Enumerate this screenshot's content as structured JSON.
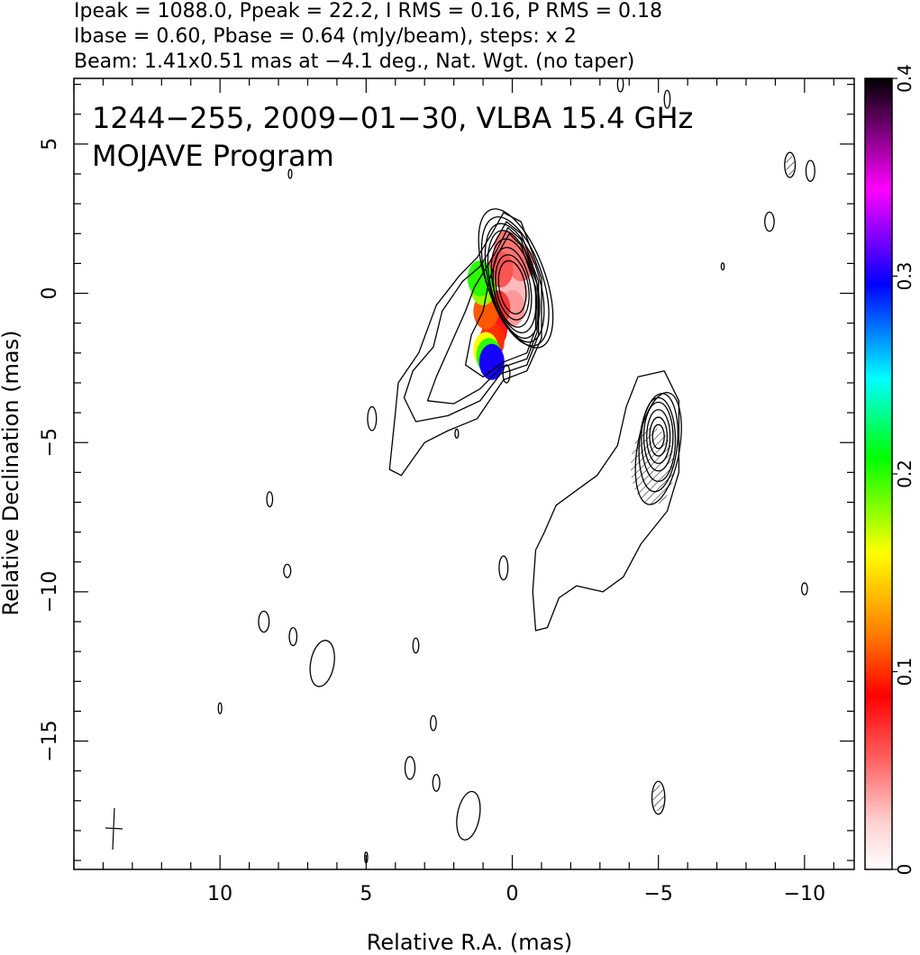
{
  "chart_data": {
    "type": "contour",
    "header": [
      "Ipeak = 1088.0, Ppeak = 22.2, I RMS = 0.16, P RMS = 0.18",
      "Ibase = 0.60, Pbase = 0.64 (mJy/beam), steps: x 2",
      "Beam: 1.41x0.51 mas at −4.1 deg., Nat. Wgt. (no taper)"
    ],
    "annotation": [
      "1244−255, 2009−01−30, VLBA 15.4 GHz",
      "MOJAVE Program"
    ],
    "xlabel": "Relative R.A. (mas)",
    "ylabel": "Relative Declination (mas)",
    "xlim": [
      15.0,
      -11.7
    ],
    "ylim": [
      -19.3,
      7.2
    ],
    "xticks": [
      10,
      5,
      0,
      -5,
      -10
    ],
    "yticks": [
      5,
      0,
      -5,
      -10,
      -15
    ],
    "colorbar": {
      "range": [
        0,
        0.4
      ],
      "ticks": [
        0,
        0.1,
        0.2,
        0.3,
        0.4
      ],
      "colors": [
        "#ffffff",
        "#ffd0d0",
        "#ff6060",
        "#ff0000",
        "#ff8000",
        "#ffff00",
        "#00ff00",
        "#00ffff",
        "#0000ff",
        "#ff00ff",
        "#000000"
      ]
    },
    "core": {
      "x": 0.0,
      "y": 0.0
    },
    "secondary_component": {
      "x": -5.0,
      "y": -4.8
    },
    "beam": {
      "major": 1.41,
      "minor": 0.51,
      "pa": -4.1
    },
    "contours": [
      {
        "cx": 0.0,
        "cy": 0.2,
        "rx": 0.45,
        "ry": 0.9,
        "rot": -10
      },
      {
        "cx": 0.0,
        "cy": 0.2,
        "rx": 0.55,
        "ry": 1.1,
        "rot": -10
      },
      {
        "cx": 0.0,
        "cy": 0.2,
        "rx": 0.62,
        "ry": 1.35,
        "rot": -10
      },
      {
        "cx": -0.05,
        "cy": 0.25,
        "rx": 0.7,
        "ry": 1.6,
        "rot": -12
      },
      {
        "cx": -0.05,
        "cy": 0.3,
        "rx": 0.78,
        "ry": 1.85,
        "rot": -14
      },
      {
        "cx": -0.08,
        "cy": 0.35,
        "rx": 0.86,
        "ry": 2.05,
        "rot": -16
      },
      {
        "cx": -0.1,
        "cy": 0.4,
        "rx": 0.95,
        "ry": 2.25,
        "rot": -18
      },
      {
        "cx": -0.12,
        "cy": 0.5,
        "rx": 1.0,
        "ry": 2.45,
        "rot": -20
      },
      {
        "cx": -5.0,
        "cy": -4.8,
        "rx": 0.2,
        "ry": 0.4,
        "rot": 0
      },
      {
        "cx": -5.0,
        "cy": -4.8,
        "rx": 0.3,
        "ry": 0.65,
        "rot": 0
      },
      {
        "cx": -5.0,
        "cy": -4.8,
        "rx": 0.4,
        "ry": 0.9,
        "rot": 0
      },
      {
        "cx": -5.0,
        "cy": -4.8,
        "rx": 0.5,
        "ry": 1.15,
        "rot": 0
      },
      {
        "cx": -5.0,
        "cy": -4.9,
        "rx": 0.58,
        "ry": 1.4,
        "rot": 0
      },
      {
        "cx": -5.0,
        "cy": -5.0,
        "rx": 0.65,
        "ry": 1.65,
        "rot": 5
      },
      {
        "cx": -5.0,
        "cy": -5.2,
        "rx": 0.72,
        "ry": 1.9,
        "rot": 10
      },
      {
        "cx": 4.8,
        "cy": -4.2,
        "rx": 0.15,
        "ry": 0.4,
        "rot": 0
      },
      {
        "cx": 8.3,
        "cy": -6.9,
        "rx": 0.1,
        "ry": 0.25,
        "rot": 0
      },
      {
        "cx": 7.7,
        "cy": -9.3,
        "rx": 0.12,
        "ry": 0.22,
        "rot": 0
      },
      {
        "cx": 8.5,
        "cy": -11.0,
        "rx": 0.18,
        "ry": 0.35,
        "rot": 0
      },
      {
        "cx": 7.5,
        "cy": -11.5,
        "rx": 0.13,
        "ry": 0.3,
        "rot": 0
      },
      {
        "cx": 6.5,
        "cy": -12.4,
        "rx": 0.4,
        "ry": 0.78,
        "rot": 10
      },
      {
        "cx": 3.3,
        "cy": -11.8,
        "rx": 0.1,
        "ry": 0.25,
        "rot": 0
      },
      {
        "cx": 0.3,
        "cy": -9.2,
        "rx": 0.15,
        "ry": 0.4,
        "rot": 0
      },
      {
        "cx": 0.2,
        "cy": -2.7,
        "rx": 0.12,
        "ry": 0.3,
        "rot": 0
      },
      {
        "cx": 2.7,
        "cy": -14.4,
        "rx": 0.1,
        "ry": 0.25,
        "rot": 0
      },
      {
        "cx": 3.5,
        "cy": -15.9,
        "rx": 0.17,
        "ry": 0.38,
        "rot": 0
      },
      {
        "cx": 2.6,
        "cy": -16.4,
        "rx": 0.12,
        "ry": 0.28,
        "rot": 0
      },
      {
        "cx": 1.5,
        "cy": -17.5,
        "rx": 0.38,
        "ry": 0.82,
        "rot": 10
      },
      {
        "cx": 5.0,
        "cy": -18.9,
        "rx": 0.05,
        "ry": 0.18,
        "rot": 0
      },
      {
        "cx": 10.0,
        "cy": -13.9,
        "rx": 0.06,
        "ry": 0.18,
        "rot": 0
      },
      {
        "cx": -5.0,
        "cy": -16.9,
        "rx": 0.22,
        "ry": 0.55,
        "rot": 0
      },
      {
        "cx": -8.8,
        "cy": 2.4,
        "rx": 0.16,
        "ry": 0.32,
        "rot": 0
      },
      {
        "cx": -9.5,
        "cy": 4.3,
        "rx": 0.18,
        "ry": 0.42,
        "rot": 0
      },
      {
        "cx": -10.2,
        "cy": 4.1,
        "rx": 0.15,
        "ry": 0.35,
        "rot": 0
      },
      {
        "cx": -10.0,
        "cy": -9.9,
        "rx": 0.1,
        "ry": 0.2,
        "rot": 0
      },
      {
        "cx": -7.2,
        "cy": 0.9,
        "rx": 0.05,
        "ry": 0.12,
        "rot": 0
      },
      {
        "cx": -5.3,
        "cy": 6.5,
        "rx": 0.1,
        "ry": 0.3,
        "rot": 0
      },
      {
        "cx": -3.7,
        "cy": 7.0,
        "rx": 0.1,
        "ry": 0.25,
        "rot": 0
      },
      {
        "cx": 7.6,
        "cy": 4.0,
        "rx": 0.06,
        "ry": 0.15,
        "rot": 0
      },
      {
        "cx": 1.9,
        "cy": -4.7,
        "rx": 0.06,
        "ry": 0.15,
        "rot": 0
      }
    ],
    "jet_contours": [
      [
        [
          0.3,
          2.7
        ],
        [
          -0.3,
          2.4
        ],
        [
          -1.0,
          0.5
        ],
        [
          -1.0,
          -1.5
        ],
        [
          -0.5,
          -2.6
        ],
        [
          0.3,
          -2.9
        ],
        [
          1.2,
          -4.2
        ],
        [
          2.2,
          -4.6
        ],
        [
          3.0,
          -5.0
        ],
        [
          3.8,
          -6.1
        ],
        [
          4.2,
          -5.9
        ],
        [
          4.0,
          -4.0
        ],
        [
          3.9,
          -3.0
        ],
        [
          3.2,
          -2.0
        ],
        [
          2.6,
          -0.4
        ],
        [
          1.8,
          0.6
        ],
        [
          1.2,
          1.2
        ],
        [
          0.7,
          2.0
        ]
      ],
      [
        [
          0.2,
          2.4
        ],
        [
          -0.3,
          2.0
        ],
        [
          -0.9,
          0.4
        ],
        [
          -0.9,
          -1.4
        ],
        [
          -0.5,
          -2.4
        ],
        [
          0.4,
          -2.7
        ],
        [
          1.1,
          -3.6
        ],
        [
          2.2,
          -4.1
        ],
        [
          3.3,
          -4.3
        ],
        [
          3.7,
          -3.5
        ],
        [
          3.4,
          -2.6
        ],
        [
          2.7,
          -1.8
        ],
        [
          2.4,
          -0.6
        ],
        [
          1.7,
          0.4
        ],
        [
          1.1,
          0.9
        ],
        [
          0.6,
          1.7
        ]
      ],
      [
        [
          0.15,
          2.2
        ],
        [
          -0.3,
          1.8
        ],
        [
          -0.85,
          0.3
        ],
        [
          -0.85,
          -1.3
        ],
        [
          -0.5,
          -2.2
        ],
        [
          0.4,
          -2.5
        ],
        [
          1.1,
          -3.2
        ],
        [
          2.0,
          -3.7
        ],
        [
          2.9,
          -3.6
        ],
        [
          2.6,
          -2.8
        ],
        [
          2.1,
          -1.7
        ],
        [
          1.6,
          -0.6
        ],
        [
          1.3,
          0.2
        ],
        [
          0.8,
          1.0
        ],
        [
          0.5,
          1.5
        ]
      ],
      [
        [
          0.1,
          2.0
        ],
        [
          -0.3,
          1.6
        ],
        [
          -0.8,
          0.2
        ],
        [
          -0.8,
          -1.2
        ],
        [
          -0.5,
          -2.0
        ],
        [
          0.3,
          -2.3
        ],
        [
          1.0,
          -2.8
        ],
        [
          1.6,
          -2.4
        ],
        [
          1.4,
          -1.4
        ],
        [
          1.0,
          -0.6
        ],
        [
          0.8,
          0.4
        ],
        [
          0.5,
          1.3
        ]
      ]
    ],
    "south_contours": [
      [
        [
          -4.3,
          -2.8
        ],
        [
          -5.2,
          -2.6
        ],
        [
          -5.7,
          -3.6
        ],
        [
          -5.7,
          -6.0
        ],
        [
          -5.3,
          -7.3
        ],
        [
          -4.4,
          -8.4
        ],
        [
          -3.8,
          -9.5
        ],
        [
          -3.1,
          -10.0
        ],
        [
          -2.2,
          -9.8
        ],
        [
          -1.6,
          -10.2
        ],
        [
          -1.2,
          -11.2
        ],
        [
          -0.8,
          -11.3
        ],
        [
          -0.7,
          -10.0
        ],
        [
          -0.8,
          -8.6
        ],
        [
          -1.1,
          -8.0
        ],
        [
          -1.5,
          -7.1
        ],
        [
          -2.2,
          -6.6
        ],
        [
          -2.9,
          -6.1
        ],
        [
          -3.6,
          -5.1
        ],
        [
          -3.9,
          -3.8
        ]
      ]
    ],
    "pol_pixels": [
      {
        "x": 0.0,
        "y": 0.3,
        "v": 0.03
      },
      {
        "x": -0.1,
        "y": 0.0,
        "v": 0.03
      },
      {
        "x": 0.0,
        "y": -0.5,
        "v": 0.04
      },
      {
        "x": 0.2,
        "y": 1.5,
        "v": 0.05
      },
      {
        "x": -0.3,
        "y": 1.0,
        "v": 0.05
      },
      {
        "x": 0.4,
        "y": 0.8,
        "v": 0.06
      },
      {
        "x": 0.5,
        "y": -0.5,
        "v": 0.07
      },
      {
        "x": 0.6,
        "y": -1.2,
        "v": 0.08
      },
      {
        "x": 0.7,
        "y": -1.6,
        "v": 0.1
      },
      {
        "x": 0.9,
        "y": -0.6,
        "v": 0.11
      },
      {
        "x": 1.0,
        "y": 0.2,
        "v": 0.18
      },
      {
        "x": 1.1,
        "y": 0.5,
        "v": 0.2
      },
      {
        "x": 0.9,
        "y": -1.9,
        "v": 0.16
      },
      {
        "x": 0.8,
        "y": -2.1,
        "v": 0.2
      },
      {
        "x": 0.7,
        "y": -2.3,
        "v": 0.3
      }
    ],
    "hatched": [
      {
        "x": -4.8,
        "y": -5.8,
        "rx": 0.75,
        "ry": 1.3
      },
      {
        "x": -5.0,
        "y": -16.9,
        "rx": 0.2,
        "ry": 0.45
      },
      {
        "x": -9.5,
        "y": 4.3,
        "rx": 0.15,
        "ry": 0.35
      }
    ]
  }
}
